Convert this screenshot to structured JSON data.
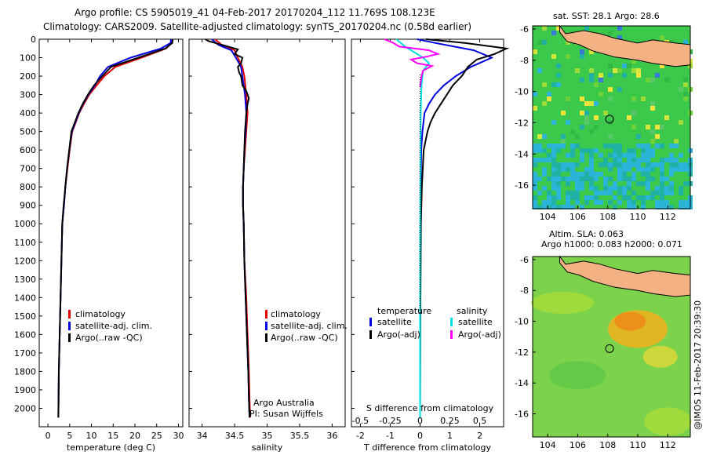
{
  "header": {
    "line1": "Argo profile: CS 5905019_41 04-Feb-2017 20170204_112 11.769S 108.123E",
    "line2": "Climatology: CARS2009. Satellite-adjusted climatology: synTS_20170204.nc (0.58d earlier)"
  },
  "map_top_title": "sat. SST: 28.1  Argo: 28.6",
  "map_bottom_title1": "Altim. SLA: 0.063",
  "map_bottom_title2": "Argo h1000: 0.083 h2000: 0.071",
  "credit": "Argo Australia",
  "pi": "PI: Susan Wijffels",
  "side_stamp": "@IMOS 11-Feb-2017 20:39:30",
  "colors": {
    "clim": "#e00000",
    "sat": "#0000e0",
    "argo": "#000000",
    "cyan": "#00e0e0",
    "magenta": "#ff00ff",
    "land": "#f4b183"
  },
  "chart_data": [
    {
      "type": "line",
      "xlabel": "temperature (deg C)",
      "ylabel": "",
      "xlim": [
        -2,
        31
      ],
      "ylim": [
        2100,
        0
      ],
      "xticks": [
        0,
        5,
        10,
        15,
        20,
        25,
        30
      ],
      "yticks": [
        0,
        100,
        200,
        300,
        400,
        500,
        600,
        700,
        800,
        900,
        1000,
        1100,
        1200,
        1300,
        1400,
        1500,
        1600,
        1700,
        1800,
        1900,
        2000
      ],
      "legend": [
        "climatology",
        "satellite-adj. clim.",
        "Argo(..raw -QC)"
      ],
      "series": [
        {
          "name": "climatology",
          "color": "#e00000",
          "x": [
            28.5,
            28.4,
            27.2,
            21.5,
            15.5,
            13,
            11.2,
            9.5,
            8.3,
            7.2,
            6.4,
            5.6,
            5,
            4.5,
            4,
            3.7,
            3.3,
            3.1,
            2.9,
            2.7,
            2.5,
            2.4
          ],
          "y": [
            0,
            20,
            50,
            100,
            150,
            200,
            250,
            300,
            350,
            400,
            450,
            500,
            600,
            700,
            800,
            900,
            1000,
            1200,
            1400,
            1600,
            1800,
            2050
          ]
        },
        {
          "name": "satellite-adj. clim.",
          "color": "#0000e0",
          "x": [
            28.3,
            28.2,
            26,
            19,
            13.8,
            12,
            10.8,
            9.3,
            8.1,
            7.1,
            6.3,
            5.5,
            4.9,
            4.4,
            4,
            3.7,
            3.3,
            3.1,
            2.9,
            2.7,
            2.5,
            2.4
          ],
          "y": [
            0,
            20,
            50,
            100,
            150,
            200,
            250,
            300,
            350,
            400,
            450,
            500,
            600,
            700,
            800,
            900,
            1000,
            1200,
            1400,
            1600,
            1800,
            2050
          ]
        },
        {
          "name": "Argo(..raw -QC)",
          "color": "#000000",
          "x": [
            28.7,
            28.6,
            27,
            20.8,
            14.5,
            12.5,
            10.6,
            9.2,
            8,
            7,
            6.2,
            5.4,
            4.9,
            4.4,
            4,
            3.6,
            3.3,
            3.1,
            2.9,
            2.7,
            2.5,
            2.4
          ],
          "y": [
            0,
            20,
            50,
            100,
            150,
            200,
            250,
            300,
            350,
            400,
            450,
            500,
            600,
            700,
            800,
            900,
            1000,
            1200,
            1400,
            1600,
            1800,
            2050
          ]
        }
      ]
    },
    {
      "type": "line",
      "xlabel": "salinity",
      "ylabel": "",
      "xlim": [
        33.8,
        36.2
      ],
      "ylim": [
        2100,
        0
      ],
      "xticks": [
        34,
        34.5,
        35,
        35.5,
        36
      ],
      "legend": [
        "climatology",
        "satellite-adj. clim.",
        "Argo(..raw -QC)"
      ],
      "series": [
        {
          "name": "climatology",
          "color": "#e00000",
          "x": [
            34.2,
            34.3,
            34.5,
            34.55,
            34.62,
            34.65,
            34.68,
            34.7,
            34.68,
            34.66,
            34.64,
            34.63,
            34.63,
            34.64,
            34.65,
            34.68,
            34.7,
            34.72,
            34.73,
            34.74
          ],
          "y": [
            0,
            30,
            60,
            100,
            150,
            200,
            300,
            400,
            500,
            600,
            700,
            800,
            900,
            1000,
            1200,
            1400,
            1600,
            1800,
            1950,
            2050
          ]
        },
        {
          "name": "satellite-adj. clim.",
          "color": "#0000e0",
          "x": [
            34.15,
            34.25,
            34.45,
            34.52,
            34.6,
            34.62,
            34.66,
            34.68,
            34.67,
            34.65,
            34.64,
            34.63,
            34.63,
            34.64,
            34.65,
            34.67,
            34.69,
            34.71,
            34.72,
            34.73
          ],
          "y": [
            0,
            30,
            60,
            100,
            150,
            200,
            300,
            400,
            500,
            600,
            700,
            800,
            900,
            1000,
            1200,
            1400,
            1600,
            1800,
            1950,
            2050
          ]
        },
        {
          "name": "Argo(..raw -QC)",
          "color": "#000000",
          "x": [
            34.05,
            34.1,
            34.2,
            34.35,
            34.45,
            34.55,
            34.5,
            34.62,
            34.6,
            34.55,
            34.57,
            34.6,
            34.62,
            34.68,
            34.72,
            34.7,
            34.68,
            34.66,
            34.65,
            34.64,
            34.63,
            34.63,
            34.64,
            34.65,
            34.67,
            34.69,
            34.71,
            34.72,
            34.73
          ],
          "y": [
            0,
            10,
            20,
            35,
            45,
            55,
            80,
            100,
            130,
            150,
            180,
            200,
            250,
            280,
            320,
            350,
            400,
            500,
            600,
            700,
            800,
            900,
            1000,
            1200,
            1400,
            1600,
            1800,
            1950,
            2050
          ]
        }
      ]
    },
    {
      "type": "line",
      "xlabel": "T difference from climatology",
      "x2label": "S difference from climatology",
      "ylabel": "",
      "xlim": [
        -2.3,
        2.8
      ],
      "ylim": [
        2100,
        0
      ],
      "xticks": [
        -2,
        -1,
        0,
        1,
        2
      ],
      "x2ticks": [
        "-0.5",
        "-0.25",
        "0",
        "0.25",
        "0.5"
      ],
      "legend_temperature": "temperature",
      "legend_salinity": "salinity",
      "legend_items": [
        "satellite",
        "Argo(-adj)",
        "satellite",
        "Argo(-adj)"
      ],
      "series": [
        {
          "name": "satellite",
          "group": "temperature",
          "color": "#0000e0",
          "x": [
            -0.1,
            0.5,
            1.8,
            2.4,
            1.7,
            1.2,
            0.8,
            0.5,
            0.3,
            0.15,
            0.08,
            0.04,
            0.02,
            0.01,
            0,
            0
          ],
          "y": [
            0,
            20,
            60,
            100,
            150,
            200,
            250,
            300,
            350,
            400,
            500,
            600,
            800,
            1000,
            1500,
            2050
          ]
        },
        {
          "name": "Argo(-adj)",
          "group": "temperature",
          "color": "#000000",
          "x": [
            0.2,
            1.5,
            2.9,
            2.5,
            1.9,
            1.6,
            1.4,
            1.1,
            0.9,
            0.7,
            0.5,
            0.35,
            0.25,
            0.12,
            0.06,
            0.03,
            0.01,
            0
          ],
          "y": [
            0,
            20,
            50,
            80,
            110,
            150,
            200,
            250,
            300,
            350,
            400,
            450,
            500,
            600,
            800,
            1000,
            1500,
            2050
          ]
        },
        {
          "name": "satellite",
          "group": "salinity",
          "color": "#00e0e0",
          "x": [
            -0.8,
            -0.5,
            -0.2,
            0.1,
            0.3,
            0.1,
            0.05,
            0.02,
            0.01,
            0,
            0
          ],
          "y": [
            0,
            40,
            70,
            100,
            130,
            170,
            250,
            400,
            700,
            1200,
            2050
          ]
        },
        {
          "name": "Argo(-adj)",
          "group": "salinity",
          "color": "#ff00ff",
          "x": [
            -1.2,
            -0.9,
            -0.7,
            -0.2,
            0.3,
            0.6,
            0.2,
            -0.3,
            -0.1,
            0.4,
            0.1,
            0.05,
            0
          ],
          "y": [
            0,
            20,
            40,
            50,
            60,
            80,
            95,
            110,
            130,
            145,
            170,
            200,
            260
          ]
        }
      ]
    },
    {
      "type": "heatmap",
      "title": "sat. SST: 28.1  Argo: 28.6",
      "xlim": [
        103,
        113.5
      ],
      "ylim": [
        -17.5,
        -5.8
      ],
      "xticks": [
        104,
        106,
        108,
        110,
        112
      ],
      "yticks": [
        -6,
        -8,
        -10,
        -12,
        -14,
        -16
      ],
      "marker": {
        "lon": 108.123,
        "lat": -11.769
      }
    },
    {
      "type": "heatmap",
      "title": "Altim. SLA: 0.063",
      "xlim": [
        103,
        113.5
      ],
      "ylim": [
        -17.5,
        -5.8
      ],
      "xticks": [
        104,
        106,
        108,
        110,
        112
      ],
      "yticks": [
        -6,
        -8,
        -10,
        -12,
        -14,
        -16
      ],
      "marker": {
        "lon": 108.123,
        "lat": -11.769
      }
    }
  ]
}
